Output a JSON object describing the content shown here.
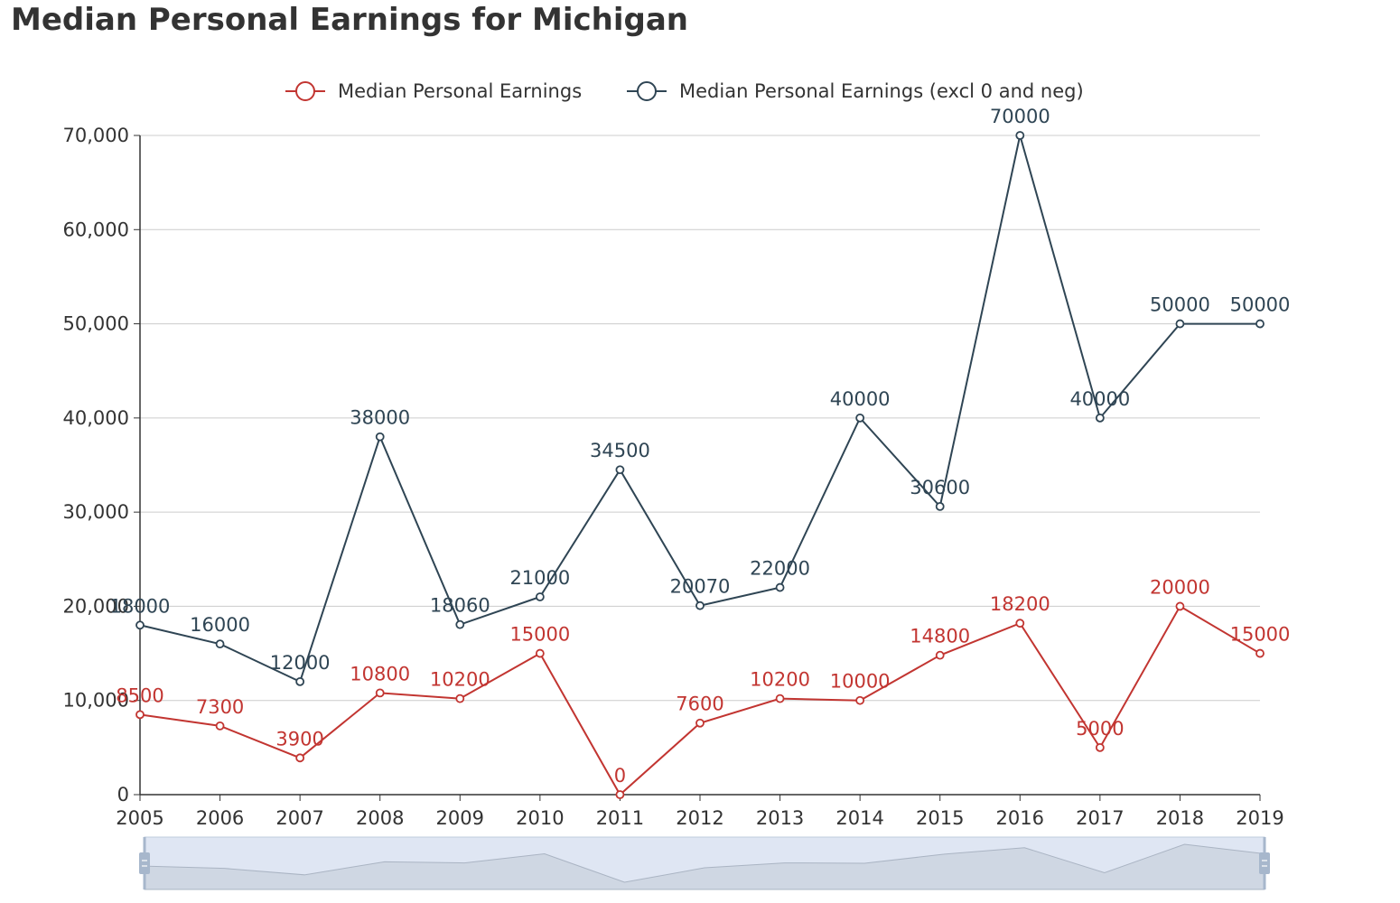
{
  "title": "Median Personal Earnings for Michigan",
  "colors": {
    "series_1": "#c23531",
    "series_2": "#2f4554",
    "grid": "#cccccc",
    "axis": "#333333",
    "zoom_fill": "#d2dbee",
    "zoom_handle": "#a7b7cc"
  },
  "chart_data": {
    "type": "line",
    "title": "Median Personal Earnings for Michigan",
    "x": [
      "2005",
      "2006",
      "2007",
      "2008",
      "2009",
      "2010",
      "2011",
      "2012",
      "2013",
      "2014",
      "2015",
      "2016",
      "2017",
      "2018",
      "2019"
    ],
    "series": [
      {
        "name": "Median Personal Earnings",
        "color": "#c23531",
        "values": [
          8500,
          7300,
          3900,
          10800,
          10200,
          15000,
          0,
          7600,
          10200,
          10000,
          14800,
          18200,
          5000,
          20000,
          15000
        ]
      },
      {
        "name": "Median Personal Earnings (excl 0 and neg)",
        "color": "#2f4554",
        "values": [
          18000,
          16000,
          12000,
          38000,
          18060,
          21000,
          34500,
          20070,
          22000,
          40000,
          30600,
          70000,
          40000,
          50000,
          50000
        ]
      }
    ],
    "ylim": [
      0,
      70000
    ],
    "yticks": [
      "0",
      "10,000",
      "20,000",
      "30,000",
      "40,000",
      "50,000",
      "60,000",
      "70,000"
    ],
    "ytick_values": [
      0,
      10000,
      20000,
      30000,
      40000,
      50000,
      60000,
      70000
    ],
    "grid": true,
    "legend_position": "top-center",
    "data_zoom": true
  }
}
